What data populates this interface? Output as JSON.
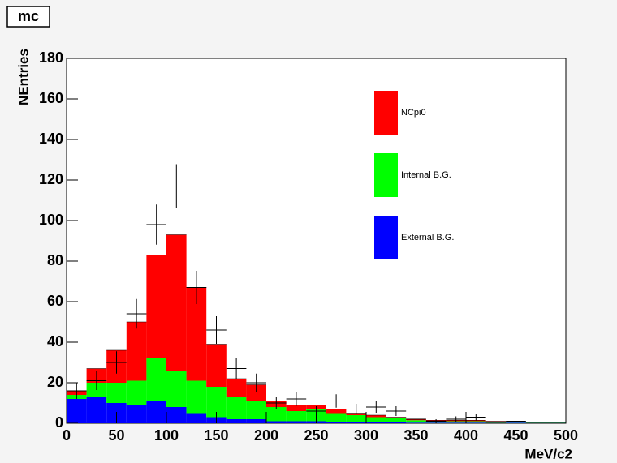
{
  "chart_data": {
    "type": "stacked_histogram",
    "title": "mc",
    "xlabel": "MeV/c2",
    "ylabel": "NEntries",
    "bins": [
      0,
      20,
      40,
      60,
      80,
      100,
      120,
      140,
      160,
      180,
      200,
      220,
      240,
      260,
      280,
      300,
      320,
      340,
      360,
      380,
      400,
      420,
      440,
      460,
      480,
      500
    ],
    "series": [
      {
        "name": "External B.G.",
        "color": "#0000ff",
        "values": [
          12,
          13,
          10,
          9,
          11,
          8,
          5,
          3,
          2,
          2,
          1,
          1,
          1,
          0.5,
          0.5,
          0.5,
          0.5,
          0.3,
          0.3,
          0.3,
          0.3,
          0.3,
          0.3,
          0.3,
          0.3
        ]
      },
      {
        "name": "Internal B.G.",
        "color": "#00ff00",
        "values": [
          2,
          7,
          10,
          12,
          21,
          18,
          16,
          15,
          11,
          9,
          7,
          5,
          6,
          4.5,
          3.5,
          2.5,
          2,
          1.2,
          0.7,
          0.7,
          0.7,
          0.5,
          0.4,
          0.2,
          0.2
        ]
      },
      {
        "name": "NCpi0",
        "color": "#ff0000",
        "values": [
          2,
          7,
          16,
          29,
          51,
          67,
          46,
          21,
          9,
          8,
          3,
          3,
          2,
          2,
          1,
          1,
          0.5,
          0.5,
          0.5,
          0.5,
          0.5,
          0.2,
          0.1,
          0.1,
          0.1
        ]
      }
    ],
    "points": {
      "values": [
        16,
        21,
        30,
        54,
        98,
        117,
        67,
        46,
        27,
        20,
        10,
        12,
        6,
        11,
        7,
        8,
        6,
        2,
        1,
        2,
        3,
        0,
        1,
        0,
        0
      ],
      "errors": [
        4,
        4.6,
        5.5,
        7.3,
        9.9,
        10.8,
        8.2,
        6.8,
        5.2,
        4.5,
        3.2,
        3.5,
        2.4,
        3.3,
        2.6,
        2.8,
        2.4,
        1.4,
        1,
        1.4,
        1.7,
        0,
        1,
        0,
        0
      ]
    },
    "xlim": [
      0,
      500
    ],
    "ylim": [
      0,
      180
    ],
    "xticks": [
      0,
      50,
      100,
      150,
      200,
      250,
      300,
      350,
      400,
      450,
      500
    ],
    "yticks": [
      0,
      20,
      40,
      60,
      80,
      100,
      120,
      140,
      160,
      180
    ],
    "legend": "upper right"
  }
}
